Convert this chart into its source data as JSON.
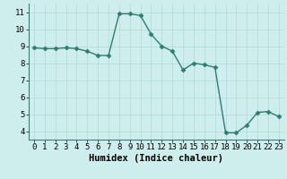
{
  "x": [
    0,
    1,
    2,
    3,
    4,
    5,
    6,
    7,
    8,
    9,
    10,
    11,
    12,
    13,
    14,
    15,
    16,
    17,
    18,
    19,
    20,
    21,
    22,
    23
  ],
  "y": [
    8.9,
    8.85,
    8.85,
    8.9,
    8.85,
    8.7,
    8.45,
    8.45,
    10.9,
    10.9,
    10.8,
    9.7,
    9.0,
    8.7,
    7.6,
    8.0,
    7.9,
    7.75,
    3.9,
    3.9,
    4.35,
    5.1,
    5.15,
    4.85
  ],
  "xlim": [
    -0.5,
    23.5
  ],
  "ylim": [
    3.5,
    11.5
  ],
  "yticks": [
    4,
    5,
    6,
    7,
    8,
    9,
    10,
    11
  ],
  "xticks": [
    0,
    1,
    2,
    3,
    4,
    5,
    6,
    7,
    8,
    9,
    10,
    11,
    12,
    13,
    14,
    15,
    16,
    17,
    18,
    19,
    20,
    21,
    22,
    23
  ],
  "xlabel": "Humidex (Indice chaleur)",
  "line_color": "#2e7d6e",
  "marker": "D",
  "marker_size": 2.5,
  "bg_color": "#ceeeed",
  "grid_major_color": "#b0d8d5",
  "grid_minor_color": "#c4e8e6",
  "tick_label_fontsize": 6.5,
  "xlabel_fontsize": 7.5,
  "linewidth": 1.0
}
